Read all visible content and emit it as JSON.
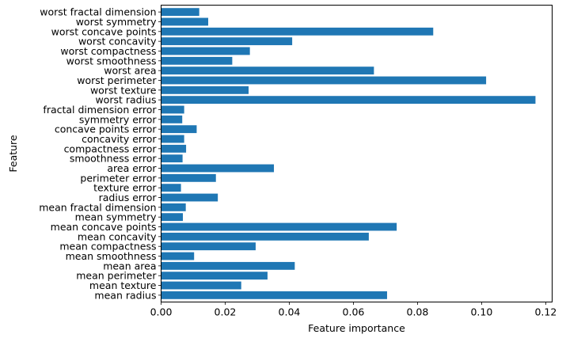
{
  "chart_data": {
    "type": "bar",
    "orientation": "horizontal",
    "title": "",
    "xlabel": "Feature importance",
    "ylabel": "Feature",
    "xlim": [
      0,
      0.122
    ],
    "xticks": [
      0.0,
      0.02,
      0.04,
      0.06,
      0.08,
      0.1,
      0.12
    ],
    "xtick_labels": [
      "0.00",
      "0.02",
      "0.04",
      "0.06",
      "0.08",
      "0.10",
      "0.12"
    ],
    "grid": false,
    "bar_color": "#1f77b4",
    "categories": [
      "mean radius",
      "mean texture",
      "mean perimeter",
      "mean area",
      "mean smoothness",
      "mean compactness",
      "mean concavity",
      "mean concave points",
      "mean symmetry",
      "mean fractal dimension",
      "radius error",
      "texture error",
      "perimeter error",
      "area error",
      "smoothness error",
      "compactness error",
      "concavity error",
      "concave points error",
      "symmetry error",
      "fractal dimension error",
      "worst radius",
      "worst texture",
      "worst perimeter",
      "worst area",
      "worst smoothness",
      "worst compactness",
      "worst concavity",
      "worst concave points",
      "worst symmetry",
      "worst fractal dimension"
    ],
    "values": [
      0.0705,
      0.025,
      0.0332,
      0.0417,
      0.0103,
      0.0295,
      0.0648,
      0.0735,
      0.0068,
      0.0077,
      0.0177,
      0.0062,
      0.0171,
      0.0352,
      0.0067,
      0.0078,
      0.0072,
      0.0111,
      0.0066,
      0.0072,
      0.1168,
      0.0273,
      0.1014,
      0.0664,
      0.0222,
      0.0277,
      0.0409,
      0.0849,
      0.0147,
      0.0119
    ]
  }
}
